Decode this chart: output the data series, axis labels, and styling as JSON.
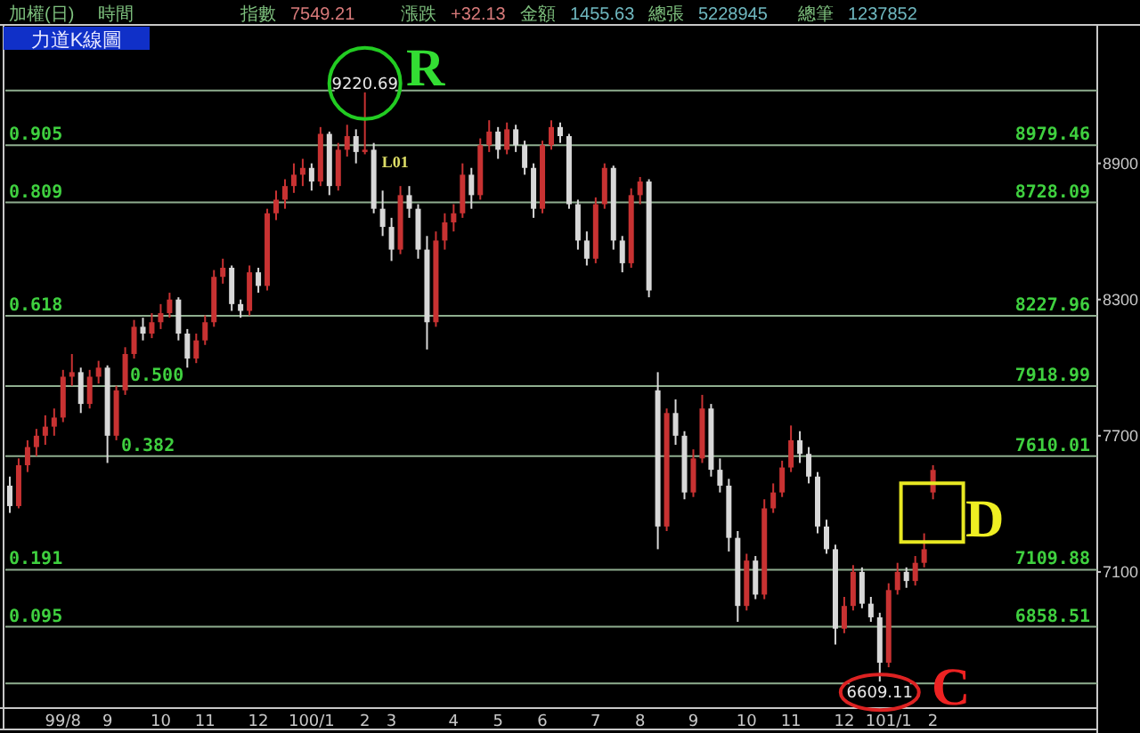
{
  "chart_data": {
    "type": "candlestick",
    "title": "力道K線圖",
    "categories": [
      null,
      null,
      null,
      null,
      null,
      null,
      "99/8",
      null,
      null,
      null,
      null,
      "9",
      null,
      null,
      null,
      null,
      null,
      "10",
      null,
      null,
      null,
      null,
      "11",
      null,
      null,
      null,
      null,
      null,
      "12",
      null,
      null,
      null,
      null,
      null,
      "100/1",
      null,
      null,
      null,
      null,
      null,
      "2",
      null,
      null,
      "3",
      null,
      null,
      null,
      null,
      null,
      null,
      "4",
      null,
      null,
      null,
      null,
      "5",
      null,
      null,
      null,
      null,
      "6",
      null,
      null,
      null,
      null,
      null,
      "7",
      null,
      null,
      null,
      null,
      "8",
      null,
      null,
      null,
      null,
      null,
      "9",
      null,
      null,
      null,
      null,
      null,
      "10",
      null,
      null,
      null,
      null,
      "11",
      null,
      null,
      null,
      null,
      null,
      "12",
      null,
      null,
      null,
      null,
      "101/1",
      null,
      null,
      null,
      null,
      "2",
      null,
      null,
      null,
      null,
      null,
      null,
      null,
      null,
      null,
      null,
      null,
      null,
      null,
      null,
      null,
      null,
      null,
      null
    ],
    "ohlc": [
      [
        7480,
        7520,
        7360,
        7390
      ],
      [
        7390,
        7600,
        7380,
        7570
      ],
      [
        7570,
        7680,
        7540,
        7650
      ],
      [
        7650,
        7730,
        7610,
        7700
      ],
      [
        7700,
        7790,
        7660,
        7740
      ],
      [
        7740,
        7820,
        7700,
        7780
      ],
      [
        7780,
        7990,
        7760,
        7960
      ],
      [
        7960,
        8060,
        7920,
        7980
      ],
      [
        7980,
        8000,
        7800,
        7840
      ],
      [
        7840,
        7990,
        7820,
        7960
      ],
      [
        7960,
        8030,
        7930,
        8000
      ],
      [
        8000,
        8010,
        7580,
        7700
      ],
      [
        7700,
        7920,
        7680,
        7900
      ],
      [
        7900,
        8090,
        7880,
        8060
      ],
      [
        8060,
        8210,
        8040,
        8180
      ],
      [
        8180,
        8220,
        8120,
        8150
      ],
      [
        8150,
        8240,
        8130,
        8200
      ],
      [
        8200,
        8280,
        8170,
        8240
      ],
      [
        8240,
        8330,
        8220,
        8300
      ],
      [
        8300,
        8310,
        8120,
        8150
      ],
      [
        8150,
        8170,
        8000,
        8040
      ],
      [
        8040,
        8150,
        8020,
        8120
      ],
      [
        8120,
        8230,
        8100,
        8200
      ],
      [
        8200,
        8430,
        8180,
        8400
      ],
      [
        8400,
        8480,
        8370,
        8440
      ],
      [
        8440,
        8450,
        8250,
        8280
      ],
      [
        8280,
        8300,
        8220,
        8250
      ],
      [
        8250,
        8450,
        8230,
        8420
      ],
      [
        8420,
        8440,
        8330,
        8360
      ],
      [
        8360,
        8700,
        8340,
        8680
      ],
      [
        8680,
        8780,
        8650,
        8740
      ],
      [
        8740,
        8830,
        8700,
        8800
      ],
      [
        8800,
        8900,
        8770,
        8850
      ],
      [
        8850,
        8920,
        8800,
        8880
      ],
      [
        8880,
        8900,
        8780,
        8820
      ],
      [
        8820,
        9060,
        8800,
        9030
      ],
      [
        9030,
        9040,
        8760,
        8800
      ],
      [
        8800,
        8990,
        8780,
        8960
      ],
      [
        8960,
        9070,
        8930,
        9020
      ],
      [
        9020,
        9050,
        8900,
        8950
      ],
      [
        8950,
        9220.69,
        8940,
        8960
      ],
      [
        8960,
        8990,
        8680,
        8700
      ],
      [
        8700,
        8780,
        8580,
        8620
      ],
      [
        8620,
        8660,
        8470,
        8520
      ],
      [
        8520,
        8800,
        8500,
        8760
      ],
      [
        8760,
        8800,
        8660,
        8700
      ],
      [
        8700,
        8720,
        8480,
        8520
      ],
      [
        8520,
        8580,
        8080,
        8200
      ],
      [
        8200,
        8600,
        8180,
        8560
      ],
      [
        8560,
        8680,
        8520,
        8640
      ],
      [
        8640,
        8720,
        8600,
        8680
      ],
      [
        8680,
        8900,
        8660,
        8850
      ],
      [
        8850,
        8880,
        8700,
        8760
      ],
      [
        8760,
        9010,
        8740,
        8980
      ],
      [
        8980,
        9090,
        8950,
        9040
      ],
      [
        9040,
        9060,
        8920,
        8960
      ],
      [
        8960,
        9080,
        8940,
        9050
      ],
      [
        9050,
        9070,
        8950,
        8980
      ],
      [
        8980,
        9000,
        8850,
        8880
      ],
      [
        8880,
        8900,
        8660,
        8700
      ],
      [
        8700,
        9000,
        8680,
        8980
      ],
      [
        8980,
        9090,
        8960,
        9060
      ],
      [
        9060,
        9080,
        8990,
        9020
      ],
      [
        9020,
        9030,
        8700,
        8720
      ],
      [
        8720,
        8740,
        8520,
        8560
      ],
      [
        8560,
        8600,
        8450,
        8480
      ],
      [
        8480,
        8750,
        8460,
        8720
      ],
      [
        8720,
        8900,
        8700,
        8880
      ],
      [
        8880,
        8890,
        8520,
        8560
      ],
      [
        8560,
        8580,
        8420,
        8460
      ],
      [
        8460,
        8790,
        8440,
        8760
      ],
      [
        8760,
        8840,
        8720,
        8820
      ],
      [
        8820,
        8830,
        8310,
        8340
      ],
      [
        7900,
        7980,
        7200,
        7300
      ],
      [
        7300,
        7820,
        7280,
        7800
      ],
      [
        7800,
        7860,
        7660,
        7700
      ],
      [
        7700,
        7720,
        7420,
        7450
      ],
      [
        7450,
        7640,
        7430,
        7600
      ],
      [
        7600,
        7880,
        7580,
        7820
      ],
      [
        7820,
        7840,
        7520,
        7550
      ],
      [
        7550,
        7600,
        7450,
        7480
      ],
      [
        7480,
        7510,
        7190,
        7250
      ],
      [
        7250,
        7280,
        6880,
        6950
      ],
      [
        6950,
        7180,
        6930,
        7150
      ],
      [
        7150,
        7170,
        6980,
        7000
      ],
      [
        7000,
        7420,
        6980,
        7380
      ],
      [
        7380,
        7490,
        7360,
        7450
      ],
      [
        7450,
        7590,
        7430,
        7560
      ],
      [
        7560,
        7745,
        7540,
        7680
      ],
      [
        7680,
        7720,
        7580,
        7620
      ],
      [
        7620,
        7650,
        7490,
        7520
      ],
      [
        7520,
        7540,
        7270,
        7300
      ],
      [
        7300,
        7330,
        7180,
        7200
      ],
      [
        7200,
        7220,
        6780,
        6850
      ],
      [
        6850,
        6990,
        6830,
        6950
      ],
      [
        6950,
        7130,
        6930,
        7100
      ],
      [
        7100,
        7120,
        6940,
        6960
      ],
      [
        6960,
        6990,
        6880,
        6900
      ],
      [
        6900,
        6920,
        6609.11,
        6700
      ],
      [
        6700,
        7050,
        6680,
        7020
      ],
      [
        7020,
        7140,
        7000,
        7100
      ],
      [
        7100,
        7120,
        7030,
        7060
      ],
      [
        7060,
        7170,
        7040,
        7140
      ],
      [
        7140,
        7270,
        7120,
        7200
      ],
      [
        7450,
        7570,
        7420,
        7549.21
      ],
      null,
      null,
      null,
      null,
      null,
      null,
      null,
      null,
      null,
      null,
      null,
      null,
      null,
      null,
      null,
      null,
      null,
      null
    ],
    "colors": [
      "#d8d8d8",
      "#c83232",
      "#c83232",
      "#c83232",
      "#c83232",
      "#c83232",
      "#c83232",
      "#c83232",
      "#d8d8d8",
      "#c83232",
      "#c83232",
      "#d8d8d8",
      "#c83232",
      "#c83232",
      "#c83232",
      "#d8d8d8",
      "#c83232",
      "#c83232",
      "#c83232",
      "#d8d8d8",
      "#d8d8d8",
      "#c83232",
      "#c83232",
      "#c83232",
      "#c83232",
      "#d8d8d8",
      "#d8d8d8",
      "#c83232",
      "#d8d8d8",
      "#c83232",
      "#c83232",
      "#c83232",
      "#c83232",
      "#c83232",
      "#d8d8d8",
      "#c83232",
      "#d8d8d8",
      "#c83232",
      "#c83232",
      "#d8d8d8",
      "#c83232",
      "#d8d8d8",
      "#d8d8d8",
      "#d8d8d8",
      "#c83232",
      "#d8d8d8",
      "#d8d8d8",
      "#d8d8d8",
      "#c83232",
      "#c83232",
      "#c83232",
      "#c83232",
      "#d8d8d8",
      "#c83232",
      "#c83232",
      "#d8d8d8",
      "#c83232",
      "#d8d8d8",
      "#d8d8d8",
      "#d8d8d8",
      "#c83232",
      "#c83232",
      "#d8d8d8",
      "#d8d8d8",
      "#d8d8d8",
      "#d8d8d8",
      "#c83232",
      "#c83232",
      "#d8d8d8",
      "#d8d8d8",
      "#c83232",
      "#c83232",
      "#d8d8d8",
      "#d8d8d8",
      "#c83232",
      "#d8d8d8",
      "#d8d8d8",
      "#c83232",
      "#c83232",
      "#d8d8d8",
      "#d8d8d8",
      "#d8d8d8",
      "#d8d8d8",
      "#c83232",
      "#d8d8d8",
      "#c83232",
      "#c83232",
      "#c83232",
      "#c83232",
      "#d8d8d8",
      "#d8d8d8",
      "#d8d8d8",
      "#d8d8d8",
      "#d8d8d8",
      "#c83232",
      "#c83232",
      "#d8d8d8",
      "#d8d8d8",
      "#d8d8d8",
      "#c83232",
      "#c83232",
      "#d8d8d8",
      "#c83232",
      "#c83232",
      "#c83232",
      null,
      null,
      null,
      null,
      null,
      null,
      null,
      null,
      null,
      null,
      null,
      null,
      null,
      null,
      null,
      null,
      null,
      null
    ],
    "ylim": [
      6500,
      9510
    ],
    "yticks": [
      7100,
      7700,
      8300,
      8900
    ],
    "ref_lines": [
      {
        "axis": "y",
        "value": 9220.69,
        "label": null,
        "color": "#8fae8f"
      },
      {
        "axis": "y",
        "value": 8979.46,
        "label": "8979.46",
        "color": "#8fae8f"
      },
      {
        "axis": "y",
        "value": 8728.09,
        "label": "8728.09",
        "color": "#8fae8f"
      },
      {
        "axis": "y",
        "value": 8227.96,
        "label": "8227.96",
        "color": "#8fae8f"
      },
      {
        "axis": "y",
        "value": 7918.99,
        "label": "7918.99",
        "color": "#8fae8f"
      },
      {
        "axis": "y",
        "value": 7610.01,
        "label": "7610.01",
        "color": "#8fae8f"
      },
      {
        "axis": "y",
        "value": 7109.88,
        "label": "7109.88",
        "color": "#8fae8f"
      },
      {
        "axis": "y",
        "value": 6858.51,
        "label": "6858.51",
        "color": "#8fae8f"
      },
      {
        "axis": "y",
        "value": 6609.11,
        "label": null,
        "color": "#8fae8f"
      }
    ],
    "annotations": [
      "加權(日)",
      "時間",
      "指數",
      "7549.21",
      "漲跌",
      "+32.13",
      "金額",
      "1455.63",
      "總張",
      "5228945",
      "總筆",
      "1237852",
      "R",
      "C",
      "D",
      "L01",
      {
        "text": "9220.69",
        "y": 9220.69
      },
      {
        "text": "6609.11",
        "y": 6609.11
      },
      {
        "text": "0.905",
        "y": 8979.46
      },
      {
        "text": "0.809",
        "y": 8728.09
      },
      {
        "text": "0.618",
        "y": 8227.96
      },
      {
        "text": "0.500",
        "y": 7918.99
      },
      {
        "text": "0.382",
        "y": 7610.01
      },
      {
        "text": "0.191",
        "y": 7109.88
      },
      {
        "text": "0.095",
        "y": 6858.51
      }
    ]
  }
}
